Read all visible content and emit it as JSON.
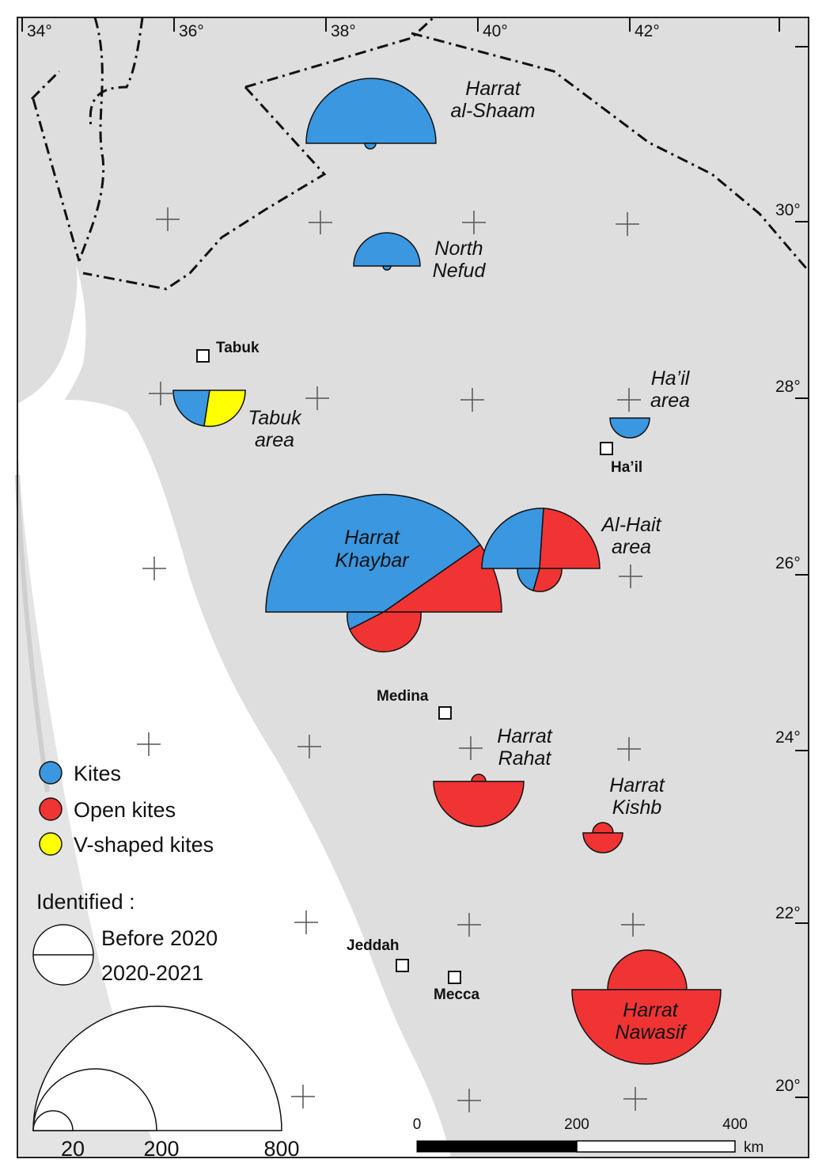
{
  "colors": {
    "kites": "#3a97e0",
    "open_kites": "#f03434",
    "v_shaped_kites": "#ffff00",
    "land": "#dcdcdc",
    "sea": "#ffffff"
  },
  "longitude_labels": [
    "34°",
    "36°",
    "38°",
    "40°",
    "42°"
  ],
  "latitude_labels": [
    "30°",
    "28°",
    "26°",
    "24°",
    "22°",
    "20°"
  ],
  "regions": {
    "harrat_al_shaam": [
      "Harrat",
      "al-Shaam"
    ],
    "north_nefud": [
      "North",
      "Nefud"
    ],
    "tabuk_area": [
      "Tabuk",
      "area"
    ],
    "hail_area": [
      "Ha’il",
      "area"
    ],
    "harrat_khaybar": [
      "Harrat",
      "Khaybar"
    ],
    "al_hait_area": [
      "Al-Hait",
      "area"
    ],
    "harrat_rahat": [
      "Harrat",
      "Rahat"
    ],
    "harrat_kishb": [
      "Harrat",
      "Kishb"
    ],
    "harrat_nawasif": [
      "Harrat",
      "Nawasif"
    ]
  },
  "cities": {
    "tabuk": "Tabuk",
    "hail": "Ha’il",
    "medina": "Medina",
    "jeddah": "Jeddah",
    "mecca": "Mecca"
  },
  "legend": {
    "kites": "Kites",
    "open_kites": "Open kites",
    "v_shaped_kites": "V-shaped kites",
    "identified": "Identified :",
    "before_2020": "Before 2020",
    "period_2020_2021": "2020-2021",
    "size_values": [
      "20",
      "200",
      "800"
    ]
  },
  "scale_bar": {
    "ticks": [
      "0",
      "200",
      "400"
    ],
    "unit": "km"
  }
}
